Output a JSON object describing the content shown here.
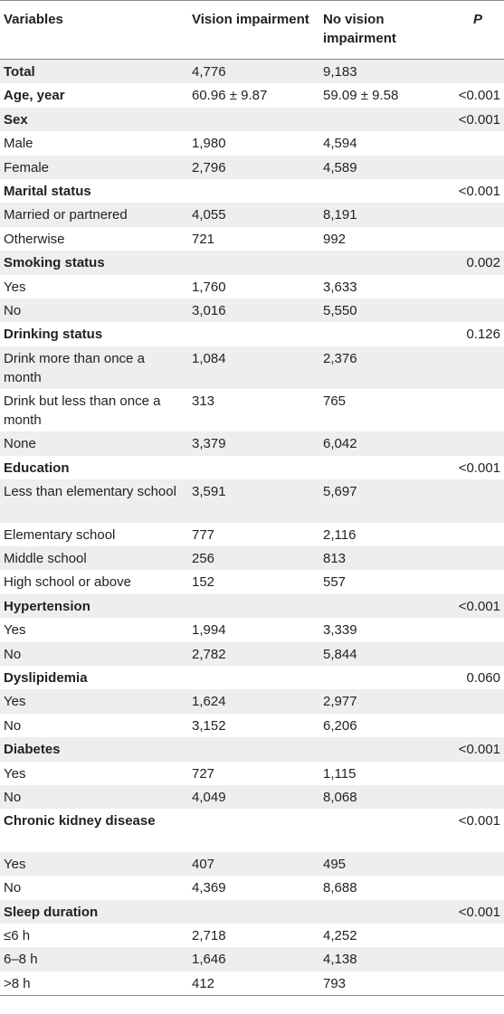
{
  "header": {
    "col1": "Variables",
    "col2": "Vision impairment",
    "col3": "No vision impairment",
    "col4": "P"
  },
  "rows": [
    {
      "label": "Total",
      "v1": "4,776",
      "v2": "9,183",
      "p": "",
      "bold": true
    },
    {
      "label": "Age, year",
      "v1": "60.96 ± 9.87",
      "v2": "59.09 ± 9.58",
      "p": "<0.001",
      "bold": true
    },
    {
      "label": "Sex",
      "v1": "",
      "v2": "",
      "p": "<0.001",
      "bold": true
    },
    {
      "label": "Male",
      "v1": "1,980",
      "v2": "4,594",
      "p": ""
    },
    {
      "label": "Female",
      "v1": "2,796",
      "v2": "4,589",
      "p": ""
    },
    {
      "label": "Marital status",
      "v1": "",
      "v2": "",
      "p": "<0.001",
      "bold": true
    },
    {
      "label": "Married or partnered",
      "v1": "4,055",
      "v2": "8,191",
      "p": ""
    },
    {
      "label": "Otherwise",
      "v1": "721",
      "v2": "992",
      "p": ""
    },
    {
      "label": "Smoking status",
      "v1": "",
      "v2": "",
      "p": "0.002",
      "bold": true
    },
    {
      "label": "Yes",
      "v1": "1,760",
      "v2": "3,633",
      "p": ""
    },
    {
      "label": "No",
      "v1": "3,016",
      "v2": "5,550",
      "p": ""
    },
    {
      "label": "Drinking status",
      "v1": "",
      "v2": "",
      "p": "0.126",
      "bold": true
    },
    {
      "label": "Drink more than once a month",
      "v1": "1,084",
      "v2": "2,376",
      "p": "",
      "tall": true
    },
    {
      "label": "Drink but less than once a month",
      "v1": "313",
      "v2": "765",
      "p": "",
      "tall": true
    },
    {
      "label": "None",
      "v1": "3,379",
      "v2": "6,042",
      "p": ""
    },
    {
      "label": "Education",
      "v1": "",
      "v2": "",
      "p": "<0.001",
      "bold": true
    },
    {
      "label": "Less than elementary school",
      "v1": "3,591",
      "v2": "5,697",
      "p": "",
      "tall": true
    },
    {
      "label": "Elementary school",
      "v1": "777",
      "v2": "2,116",
      "p": ""
    },
    {
      "label": "Middle school",
      "v1": "256",
      "v2": "813",
      "p": ""
    },
    {
      "label": "High school or above",
      "v1": "152",
      "v2": "557",
      "p": ""
    },
    {
      "label": "Hypertension",
      "v1": "",
      "v2": "",
      "p": "<0.001",
      "bold": true
    },
    {
      "label": "Yes",
      "v1": "1,994",
      "v2": "3,339",
      "p": ""
    },
    {
      "label": "No",
      "v1": "2,782",
      "v2": "5,844",
      "p": ""
    },
    {
      "label": "Dyslipidemia",
      "v1": "",
      "v2": "",
      "p": "0.060",
      "bold": true
    },
    {
      "label": "Yes",
      "v1": "1,624",
      "v2": "2,977",
      "p": ""
    },
    {
      "label": "No",
      "v1": "3,152",
      "v2": "6,206",
      "p": ""
    },
    {
      "label": "Diabetes",
      "v1": "",
      "v2": "",
      "p": "<0.001",
      "bold": true
    },
    {
      "label": "Yes",
      "v1": "727",
      "v2": "1,115",
      "p": ""
    },
    {
      "label": "No",
      "v1": "4,049",
      "v2": "8,068",
      "p": ""
    },
    {
      "label": "Chronic kidney disease",
      "v1": "",
      "v2": "",
      "p": "<0.001",
      "bold": true,
      "tall": true
    },
    {
      "label": "Yes",
      "v1": "407",
      "v2": "495",
      "p": ""
    },
    {
      "label": "No",
      "v1": "4,369",
      "v2": "8,688",
      "p": ""
    },
    {
      "label": "Sleep duration",
      "v1": "",
      "v2": "",
      "p": "<0.001",
      "bold": true
    },
    {
      "label": "≤6 h",
      "v1": "2,718",
      "v2": "4,252",
      "p": ""
    },
    {
      "label": "6–8 h",
      "v1": "1,646",
      "v2": "4,138",
      "p": ""
    },
    {
      "label": ">8 h",
      "v1": "412",
      "v2": "793",
      "p": ""
    }
  ]
}
